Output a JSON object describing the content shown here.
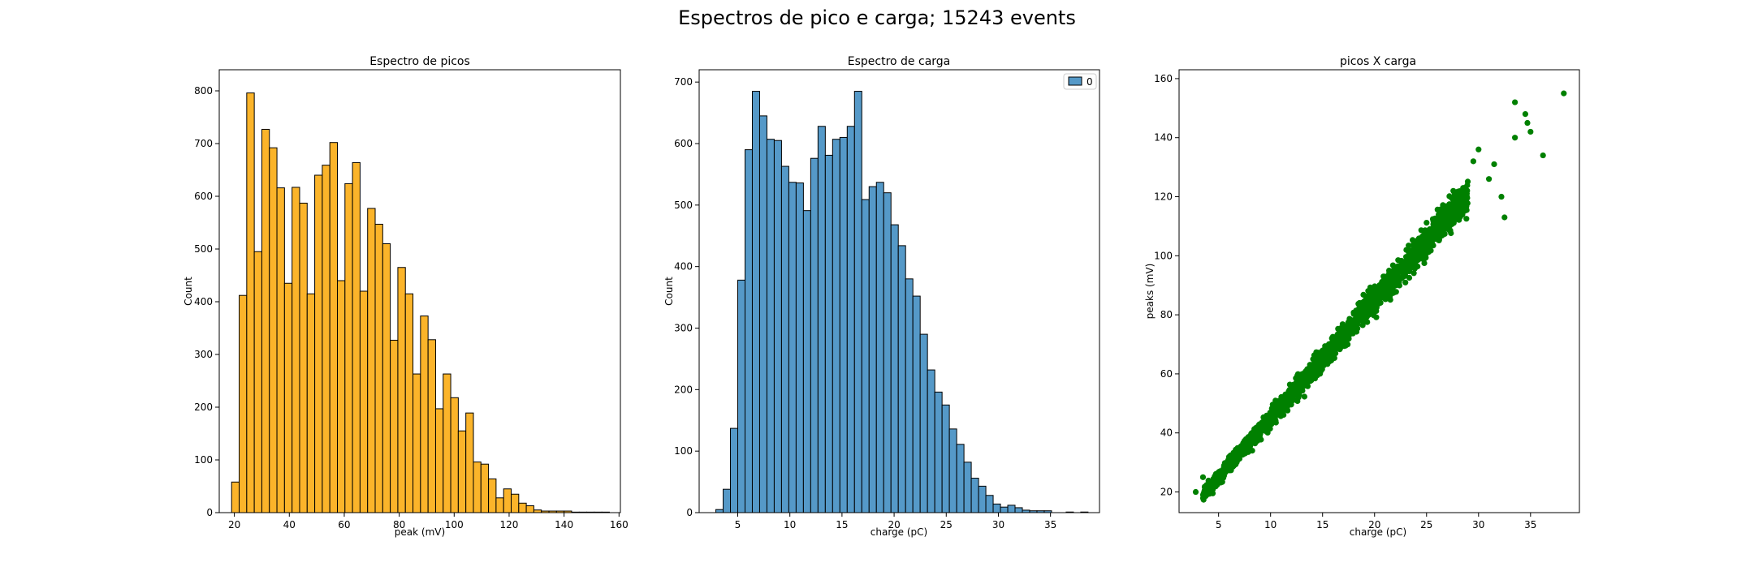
{
  "suptitle": "Espectros de pico e carga; 15243 events",
  "chart_data": [
    {
      "type": "bar",
      "title": "Espectro de picos",
      "xlabel": "peak (mV)",
      "ylabel": "Count",
      "xlim": [
        14.5,
        160.5
      ],
      "ylim": [
        0,
        840
      ],
      "xticks": [
        20,
        40,
        60,
        80,
        100,
        120,
        140,
        160
      ],
      "yticks": [
        0,
        100,
        200,
        300,
        400,
        500,
        600,
        700,
        800
      ],
      "bin_start": 19.0,
      "bin_width": 2.75,
      "values": [
        58,
        412,
        796,
        495,
        727,
        692,
        616,
        435,
        617,
        587,
        415,
        640,
        659,
        702,
        440,
        624,
        664,
        420,
        577,
        547,
        510,
        327,
        465,
        415,
        263,
        373,
        328,
        197,
        263,
        218,
        155,
        189,
        96,
        92,
        64,
        28,
        45,
        35,
        18,
        13,
        5,
        3,
        3,
        3,
        3,
        1,
        1,
        1,
        1,
        1
      ],
      "colors": {
        "fill": "#fbb42a",
        "edge": "#000000"
      }
    },
    {
      "type": "bar",
      "title": "Espectro de carga",
      "xlabel": "charge (pC)",
      "ylabel": "Count",
      "xlim": [
        1.3,
        39.7
      ],
      "ylim": [
        0,
        720
      ],
      "xticks": [
        5,
        10,
        15,
        20,
        25,
        30,
        35
      ],
      "yticks": [
        0,
        100,
        200,
        300,
        400,
        500,
        600,
        700
      ],
      "bin_start": 2.9,
      "bin_width": 0.7,
      "values": [
        5,
        38,
        137,
        378,
        590,
        685,
        645,
        607,
        605,
        563,
        537,
        536,
        491,
        576,
        628,
        581,
        607,
        610,
        628,
        685,
        509,
        530,
        537,
        520,
        468,
        434,
        380,
        352,
        290,
        232,
        196,
        175,
        136,
        111,
        82,
        56,
        43,
        28,
        14,
        9,
        12,
        8,
        4,
        3,
        3,
        3,
        0,
        0,
        1,
        0,
        1
      ],
      "legend": {
        "entries": [
          "0"
        ],
        "position": "top-right"
      },
      "colors": {
        "fill": "#5599c8",
        "edge": "#000000"
      }
    },
    {
      "type": "scatter",
      "title": "picos X carga",
      "xlabel": "charge (pC)",
      "ylabel": "peaks (mV)",
      "xlim": [
        1.2,
        39.7
      ],
      "ylim": [
        13,
        163
      ],
      "xticks": [
        5,
        10,
        15,
        20,
        25,
        30,
        35
      ],
      "yticks": [
        20,
        40,
        60,
        80,
        100,
        120,
        140,
        160
      ],
      "trend": {
        "slope": 4.0,
        "intercept": 5.0,
        "x_range": [
          3.5,
          29
        ]
      },
      "points": [
        [
          2.8,
          20
        ],
        [
          3.5,
          25
        ],
        [
          31.5,
          131
        ],
        [
          32.2,
          120
        ],
        [
          33.5,
          140
        ],
        [
          32.5,
          113
        ],
        [
          33.5,
          152
        ],
        [
          34.5,
          148
        ],
        [
          34.7,
          145
        ],
        [
          35.0,
          142
        ],
        [
          36.2,
          134
        ],
        [
          38.2,
          155
        ],
        [
          31.0,
          126
        ],
        [
          30.0,
          136
        ],
        [
          29.5,
          132
        ]
      ],
      "colors": {
        "marker": "#008000"
      }
    }
  ]
}
